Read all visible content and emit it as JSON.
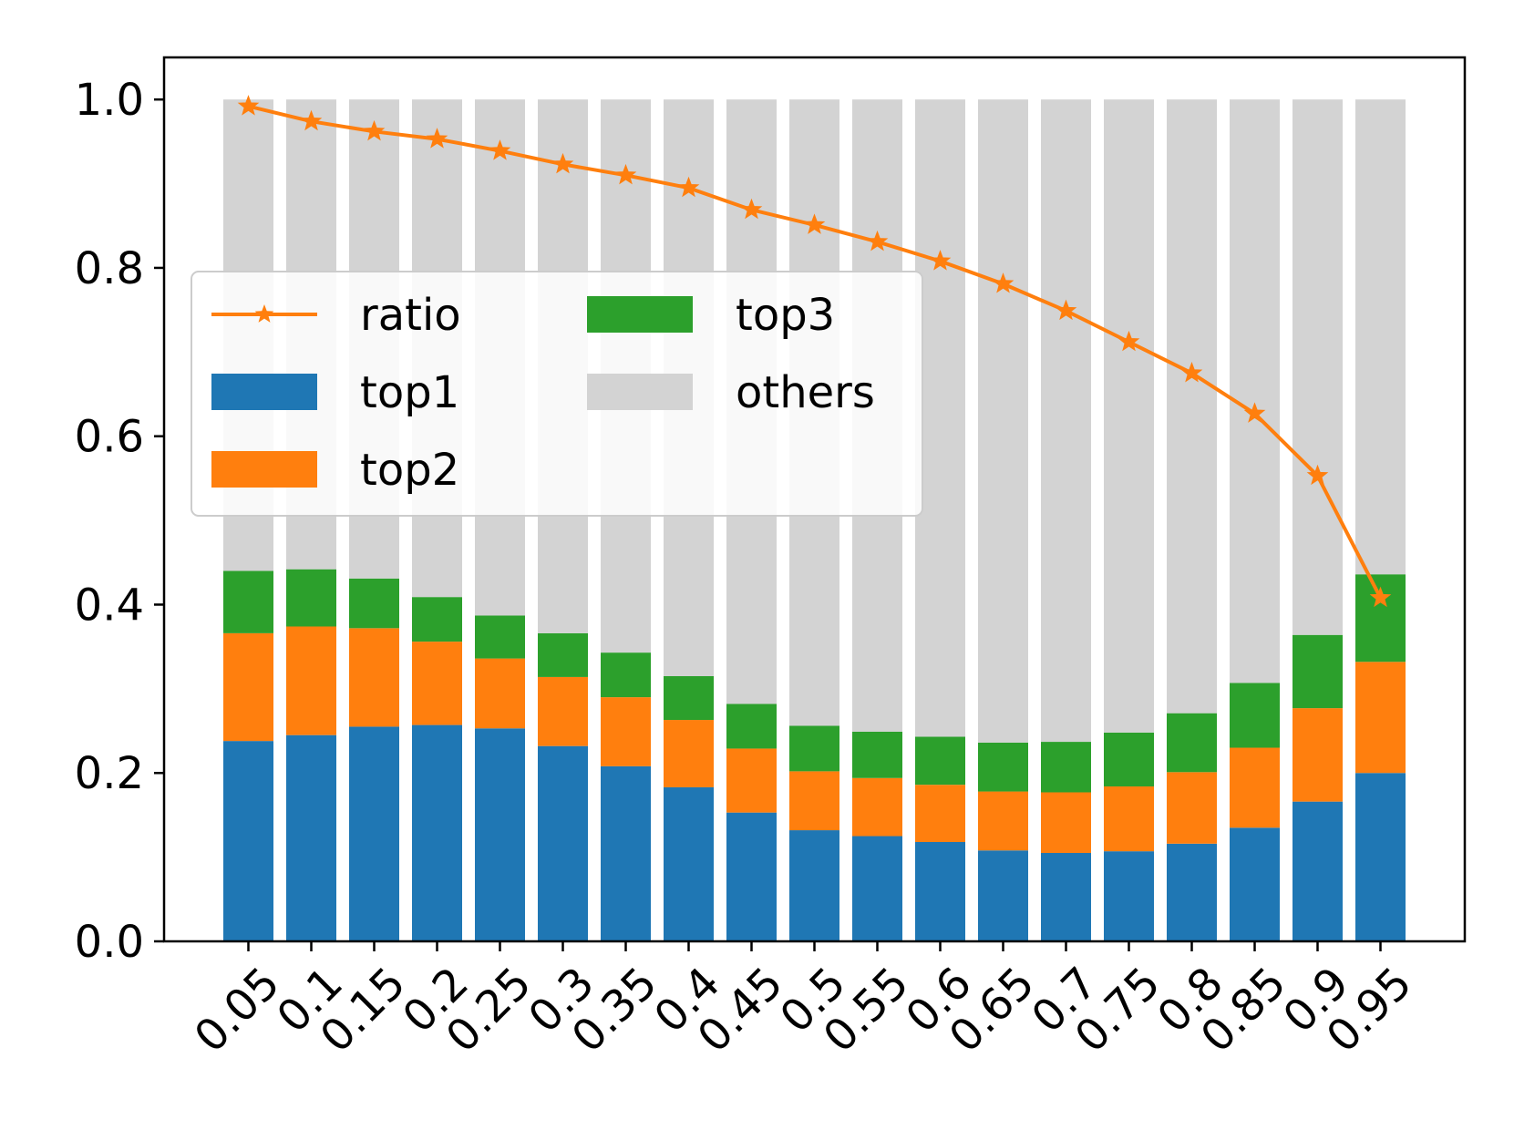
{
  "chart_data": {
    "type": "bar",
    "stacked": true,
    "categories": [
      "0.05",
      "0.1",
      "0.15",
      "0.2",
      "0.25",
      "0.3",
      "0.35",
      "0.4",
      "0.45",
      "0.5",
      "0.55",
      "0.6",
      "0.65",
      "0.7",
      "0.75",
      "0.8",
      "0.85",
      "0.9",
      "0.95"
    ],
    "series": [
      {
        "name": "top1",
        "kind": "bar",
        "color": "#1f77b4",
        "values": [
          0.238,
          0.245,
          0.255,
          0.257,
          0.253,
          0.232,
          0.208,
          0.183,
          0.153,
          0.132,
          0.125,
          0.118,
          0.108,
          0.105,
          0.107,
          0.116,
          0.135,
          0.166,
          0.2
        ]
      },
      {
        "name": "top2",
        "kind": "bar",
        "color": "#ff7f0e",
        "values": [
          0.128,
          0.129,
          0.117,
          0.099,
          0.083,
          0.082,
          0.082,
          0.08,
          0.076,
          0.07,
          0.069,
          0.068,
          0.07,
          0.072,
          0.077,
          0.085,
          0.095,
          0.111,
          0.132
        ]
      },
      {
        "name": "top3",
        "kind": "bar",
        "color": "#2ca02c",
        "values": [
          0.074,
          0.068,
          0.059,
          0.053,
          0.051,
          0.052,
          0.053,
          0.052,
          0.053,
          0.054,
          0.055,
          0.057,
          0.058,
          0.06,
          0.064,
          0.07,
          0.077,
          0.087,
          0.104
        ]
      },
      {
        "name": "others",
        "kind": "bar",
        "color": "#d3d3d3",
        "values": [
          0.56,
          0.558,
          0.569,
          0.591,
          0.613,
          0.634,
          0.657,
          0.685,
          0.718,
          0.744,
          0.751,
          0.757,
          0.764,
          0.763,
          0.752,
          0.729,
          0.693,
          0.636,
          0.564
        ]
      },
      {
        "name": "ratio",
        "kind": "line",
        "marker": "star",
        "color": "#ff7f0e",
        "values": [
          0.992,
          0.974,
          0.962,
          0.953,
          0.939,
          0.923,
          0.91,
          0.895,
          0.869,
          0.851,
          0.831,
          0.808,
          0.781,
          0.749,
          0.712,
          0.675,
          0.627,
          0.553,
          0.408
        ]
      }
    ],
    "yticks": [
      "0.0",
      "0.2",
      "0.4",
      "0.6",
      "0.8",
      "1.0"
    ],
    "ylim": [
      0,
      1.05
    ],
    "title": "",
    "xlabel": "",
    "ylabel": "",
    "grid": false,
    "legend": {
      "placement": "upper-left",
      "columns": 2,
      "entries": [
        "ratio",
        "top1",
        "top2",
        "top3",
        "others"
      ]
    }
  }
}
